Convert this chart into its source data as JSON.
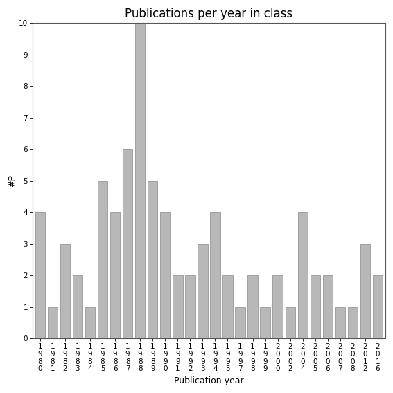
{
  "years": [
    "1980",
    "1981",
    "1982",
    "1983",
    "1984",
    "1985",
    "1986",
    "1987",
    "1988",
    "1989",
    "1990",
    "1991",
    "1992",
    "1993",
    "1994",
    "1995",
    "1997",
    "1998",
    "1999",
    "2000",
    "2002",
    "2004",
    "2005",
    "2006",
    "2007",
    "2008",
    "2012",
    "2016"
  ],
  "values": [
    4,
    1,
    3,
    2,
    1,
    5,
    4,
    6,
    10,
    5,
    4,
    2,
    2,
    3,
    4,
    2,
    1,
    2,
    1,
    2,
    1,
    4,
    2,
    2,
    1,
    1,
    3,
    2
  ],
  "title": "Publications per year in class",
  "xlabel": "Publication year",
  "ylabel": "#P",
  "bar_color": "#b8b8b8",
  "bar_edgecolor": "#888888",
  "ylim": [
    0,
    10
  ],
  "yticks": [
    0,
    1,
    2,
    3,
    4,
    5,
    6,
    7,
    8,
    9,
    10
  ],
  "background_color": "#ffffff",
  "title_fontsize": 12,
  "label_fontsize": 9,
  "tick_fontsize": 7.5
}
